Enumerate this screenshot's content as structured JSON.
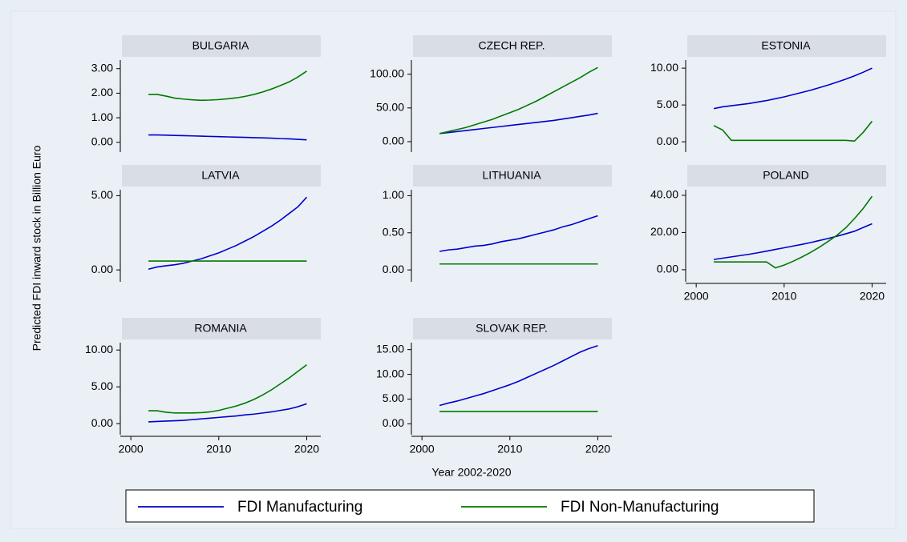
{
  "figure": {
    "y_label": "Predicted FDI inward stock in Billion Euro",
    "x_label": "Year 2002-2020"
  },
  "chart_data": [
    {
      "type": "line",
      "title": "BULGARIA",
      "x": [
        2002,
        2003,
        2004,
        2005,
        2006,
        2007,
        2008,
        2009,
        2010,
        2011,
        2012,
        2013,
        2014,
        2015,
        2016,
        2017,
        2018,
        2019,
        2020
      ],
      "series": [
        {
          "name": "FDI Manufacturing",
          "color": "#0000cc",
          "values": [
            0.3,
            0.3,
            0.29,
            0.28,
            0.27,
            0.26,
            0.25,
            0.24,
            0.23,
            0.22,
            0.21,
            0.2,
            0.19,
            0.18,
            0.17,
            0.15,
            0.14,
            0.12,
            0.1
          ]
        },
        {
          "name": "FDI Non-Manufacturing",
          "color": "#007a00",
          "values": [
            1.95,
            1.95,
            1.88,
            1.8,
            1.76,
            1.73,
            1.71,
            1.72,
            1.74,
            1.77,
            1.81,
            1.87,
            1.95,
            2.05,
            2.17,
            2.31,
            2.46,
            2.66,
            2.9
          ]
        }
      ],
      "xlim": [
        1998.8,
        2021.6
      ],
      "ylim": [
        -0.4,
        3.35
      ],
      "yticks": [
        {
          "value": 0,
          "label": "0.00"
        },
        {
          "value": 1,
          "label": "1.00"
        },
        {
          "value": 2,
          "label": "2.00"
        },
        {
          "value": 3,
          "label": "3.00"
        }
      ]
    },
    {
      "type": "line",
      "title": "CZECH REP.",
      "x": [
        2002,
        2003,
        2004,
        2005,
        2006,
        2007,
        2008,
        2009,
        2010,
        2011,
        2012,
        2013,
        2014,
        2015,
        2016,
        2017,
        2018,
        2019,
        2020
      ],
      "series": [
        {
          "name": "FDI Manufacturing",
          "color": "#0000cc",
          "values": [
            12,
            13.5,
            15,
            16.5,
            18,
            19.5,
            21,
            22.5,
            24,
            25.5,
            27,
            28.5,
            30,
            31.5,
            33.5,
            35.5,
            37.5,
            39.5,
            42
          ]
        },
        {
          "name": "FDI Non-Manufacturing",
          "color": "#007a00",
          "values": [
            12,
            15,
            18,
            21,
            25,
            29,
            33,
            38,
            43,
            48,
            54,
            60,
            67,
            74,
            81,
            88,
            95,
            103,
            110
          ]
        }
      ],
      "xlim": [
        1998.8,
        2021.6
      ],
      "ylim": [
        -15.5,
        121
      ],
      "yticks": [
        {
          "value": 0,
          "label": "0.00"
        },
        {
          "value": 50,
          "label": "50.00"
        },
        {
          "value": 100,
          "label": "100.00"
        }
      ]
    },
    {
      "type": "line",
      "title": "ESTONIA",
      "x": [
        2002,
        2003,
        2004,
        2005,
        2006,
        2007,
        2008,
        2009,
        2010,
        2011,
        2012,
        2013,
        2014,
        2015,
        2016,
        2017,
        2018,
        2019,
        2020
      ],
      "series": [
        {
          "name": "FDI Manufacturing",
          "color": "#0000cc",
          "values": [
            4.5,
            4.75,
            4.9,
            5.05,
            5.2,
            5.4,
            5.6,
            5.85,
            6.1,
            6.4,
            6.7,
            7.0,
            7.35,
            7.7,
            8.1,
            8.5,
            8.95,
            9.45,
            10.0
          ]
        },
        {
          "name": "FDI Non-Manufacturing",
          "color": "#007a00",
          "values": [
            2.2,
            1.6,
            0.2,
            0.2,
            0.2,
            0.2,
            0.2,
            0.2,
            0.2,
            0.2,
            0.2,
            0.2,
            0.2,
            0.2,
            0.2,
            0.2,
            0.1,
            1.3,
            2.8
          ]
        }
      ],
      "xlim": [
        1998.8,
        2021.6
      ],
      "ylim": [
        -1.4,
        11.1
      ],
      "yticks": [
        {
          "value": 0,
          "label": "0.00"
        },
        {
          "value": 5,
          "label": "5.00"
        },
        {
          "value": 10,
          "label": "10.00"
        }
      ]
    },
    {
      "type": "line",
      "title": "LATVIA",
      "x": [
        2002,
        2003,
        2004,
        2005,
        2006,
        2007,
        2008,
        2009,
        2010,
        2011,
        2012,
        2013,
        2014,
        2015,
        2016,
        2017,
        2018,
        2019,
        2020
      ],
      "series": [
        {
          "name": "FDI Manufacturing",
          "color": "#0000cc",
          "values": [
            0.05,
            0.2,
            0.28,
            0.35,
            0.45,
            0.6,
            0.75,
            0.95,
            1.15,
            1.4,
            1.65,
            1.95,
            2.25,
            2.6,
            2.95,
            3.35,
            3.8,
            4.25,
            4.9
          ]
        },
        {
          "name": "FDI Non-Manufacturing",
          "color": "#007a00",
          "values": [
            0.6,
            0.6,
            0.6,
            0.6,
            0.6,
            0.6,
            0.6,
            0.6,
            0.6,
            0.6,
            0.6,
            0.6,
            0.6,
            0.6,
            0.6,
            0.6,
            0.6,
            0.6,
            0.6
          ]
        }
      ],
      "xlim": [
        1998.8,
        2021.6
      ],
      "ylim": [
        -0.8,
        5.4
      ],
      "yticks": [
        {
          "value": 0,
          "label": "0.00"
        },
        {
          "value": 5,
          "label": "5.00"
        }
      ]
    },
    {
      "type": "line",
      "title": "LITHUANIA",
      "x": [
        2002,
        2003,
        2004,
        2005,
        2006,
        2007,
        2008,
        2009,
        2010,
        2011,
        2012,
        2013,
        2014,
        2015,
        2016,
        2017,
        2018,
        2019,
        2020
      ],
      "series": [
        {
          "name": "FDI Manufacturing",
          "color": "#0000cc",
          "values": [
            0.25,
            0.27,
            0.28,
            0.3,
            0.32,
            0.33,
            0.35,
            0.38,
            0.4,
            0.42,
            0.45,
            0.48,
            0.51,
            0.54,
            0.58,
            0.61,
            0.65,
            0.69,
            0.73
          ]
        },
        {
          "name": "FDI Non-Manufacturing",
          "color": "#007a00",
          "values": [
            0.08,
            0.08,
            0.08,
            0.08,
            0.08,
            0.08,
            0.08,
            0.08,
            0.08,
            0.08,
            0.08,
            0.08,
            0.08,
            0.08,
            0.08,
            0.08,
            0.08,
            0.08,
            0.08
          ]
        }
      ],
      "xlim": [
        1998.8,
        2021.6
      ],
      "ylim": [
        -0.16,
        1.08
      ],
      "yticks": [
        {
          "value": 0,
          "label": "0.00"
        },
        {
          "value": 0.5,
          "label": "0.50"
        },
        {
          "value": 1,
          "label": "1.00"
        }
      ]
    },
    {
      "type": "line",
      "title": "POLAND",
      "x": [
        2002,
        2003,
        2004,
        2005,
        2006,
        2007,
        2008,
        2009,
        2010,
        2011,
        2012,
        2013,
        2014,
        2015,
        2016,
        2017,
        2018,
        2019,
        2020
      ],
      "series": [
        {
          "name": "FDI Manufacturing",
          "color": "#0000cc",
          "values": [
            5.5,
            6.2,
            6.9,
            7.6,
            8.3,
            9.1,
            10,
            10.9,
            11.8,
            12.7,
            13.6,
            14.6,
            15.7,
            16.8,
            18,
            19.3,
            20.7,
            22.7,
            24.7
          ]
        },
        {
          "name": "FDI Non-Manufacturing",
          "color": "#007a00",
          "values": [
            4.2,
            4.2,
            4.2,
            4.2,
            4.2,
            4.2,
            4.2,
            1.0,
            2.5,
            4.5,
            6.8,
            9.3,
            12.1,
            15.2,
            18.5,
            22.5,
            27.5,
            33,
            39.5
          ]
        }
      ],
      "xlim": [
        1998.8,
        2021.6
      ],
      "ylim": [
        -6.5,
        43
      ],
      "xticks": [
        2000,
        2010,
        2020
      ],
      "yticks": [
        {
          "value": 0,
          "label": "0.00"
        },
        {
          "value": 20,
          "label": "20.00"
        },
        {
          "value": 40,
          "label": "40.00"
        }
      ]
    },
    {
      "type": "line",
      "title": "ROMANIA",
      "x": [
        2002,
        2003,
        2004,
        2005,
        2006,
        2007,
        2008,
        2009,
        2010,
        2011,
        2012,
        2013,
        2014,
        2015,
        2016,
        2017,
        2018,
        2019,
        2020
      ],
      "series": [
        {
          "name": "FDI Manufacturing",
          "color": "#0000cc",
          "values": [
            0.25,
            0.3,
            0.35,
            0.4,
            0.45,
            0.55,
            0.65,
            0.75,
            0.85,
            0.95,
            1.05,
            1.2,
            1.3,
            1.45,
            1.6,
            1.8,
            2.0,
            2.3,
            2.7
          ]
        },
        {
          "name": "FDI Non-Manufacturing",
          "color": "#007a00",
          "values": [
            1.75,
            1.75,
            1.55,
            1.45,
            1.45,
            1.45,
            1.5,
            1.6,
            1.8,
            2.1,
            2.4,
            2.8,
            3.3,
            3.9,
            4.6,
            5.4,
            6.2,
            7.1,
            8.0
          ]
        }
      ],
      "xlim": [
        1998.8,
        2021.6
      ],
      "ylim": [
        -1.5,
        11
      ],
      "xticks": [
        2000,
        2010,
        2020
      ],
      "yticks": [
        {
          "value": 0,
          "label": "0.00"
        },
        {
          "value": 5,
          "label": "5.00"
        },
        {
          "value": 10,
          "label": "10.00"
        }
      ]
    },
    {
      "type": "line",
      "title": "SLOVAK REP.",
      "x": [
        2002,
        2003,
        2004,
        2005,
        2006,
        2007,
        2008,
        2009,
        2010,
        2011,
        2012,
        2013,
        2014,
        2015,
        2016,
        2017,
        2018,
        2019,
        2020
      ],
      "series": [
        {
          "name": "FDI Manufacturing",
          "color": "#0000cc",
          "values": [
            3.7,
            4.2,
            4.6,
            5.1,
            5.6,
            6.1,
            6.7,
            7.3,
            7.9,
            8.6,
            9.4,
            10.2,
            11.0,
            11.8,
            12.7,
            13.6,
            14.5,
            15.2,
            15.8
          ]
        },
        {
          "name": "FDI Non-Manufacturing",
          "color": "#007a00",
          "values": [
            2.5,
            2.5,
            2.5,
            2.5,
            2.5,
            2.5,
            2.5,
            2.5,
            2.5,
            2.5,
            2.5,
            2.5,
            2.5,
            2.5,
            2.5,
            2.5,
            2.5,
            2.5,
            2.5
          ]
        }
      ],
      "xlim": [
        1998.8,
        2021.6
      ],
      "ylim": [
        -2.2,
        16.4
      ],
      "xticks": [
        2000,
        2010,
        2020
      ],
      "yticks": [
        {
          "value": 0,
          "label": "0.00"
        },
        {
          "value": 5,
          "label": "5.00"
        },
        {
          "value": 10,
          "label": "10.00"
        },
        {
          "value": 15,
          "label": "15.00"
        }
      ]
    }
  ]
}
